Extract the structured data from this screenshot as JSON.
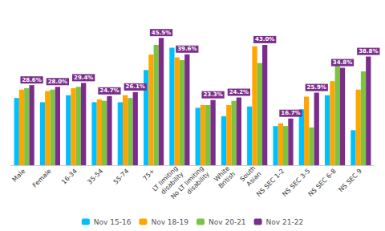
{
  "chart_data": {
    "type": "bar",
    "categories": [
      "Male",
      "Female",
      "16-34",
      "35-54",
      "55-74",
      "75+",
      "LT limiting\ndisability",
      "No LT limiting\ndisability",
      "White\nBritish",
      "South\nAsian",
      "NS SEC 1-2",
      "NS SEC 3-5",
      "NS SEC 6-8",
      "NS SEC 9"
    ],
    "series": [
      {
        "name": "Nov 15-16",
        "color": "#00BFFF",
        "values": [
          24.0,
          22.5,
          25.0,
          22.5,
          22.5,
          34.0,
          42.0,
          20.5,
          17.5,
          21.0,
          14.0,
          20.0,
          25.0,
          12.5
        ]
      },
      {
        "name": "Nov 18-19",
        "color": "#FFA500",
        "values": [
          27.0,
          26.5,
          27.5,
          23.5,
          25.0,
          39.5,
          38.5,
          21.5,
          21.5,
          42.5,
          15.0,
          24.5,
          30.0,
          27.0
        ]
      },
      {
        "name": "Nov 20-21",
        "color": "#7DC243",
        "values": [
          27.5,
          27.0,
          28.0,
          23.0,
          24.0,
          43.0,
          37.5,
          21.5,
          23.0,
          36.5,
          14.0,
          13.5,
          35.5,
          33.5
        ]
      },
      {
        "name": "Nov 21-22",
        "color": "#7B2D8B",
        "values": [
          28.6,
          28.0,
          29.4,
          24.7,
          26.1,
          45.5,
          39.6,
          23.3,
          24.2,
          43.0,
          16.7,
          25.9,
          34.8,
          38.8
        ],
        "data_labels": true,
        "value_labels": [
          "28.6%",
          "28.0%",
          "29.4%",
          "24.7%",
          "26.1%",
          "45.5%",
          "39.6%",
          "23.3%",
          "24.2%",
          "43.0%",
          "16.7%",
          "25.9%",
          "34.8%",
          "38.8%"
        ]
      }
    ],
    "ylim": [
      0,
      55
    ],
    "tick_labels": "x",
    "grid": false,
    "legend": "bottom"
  }
}
